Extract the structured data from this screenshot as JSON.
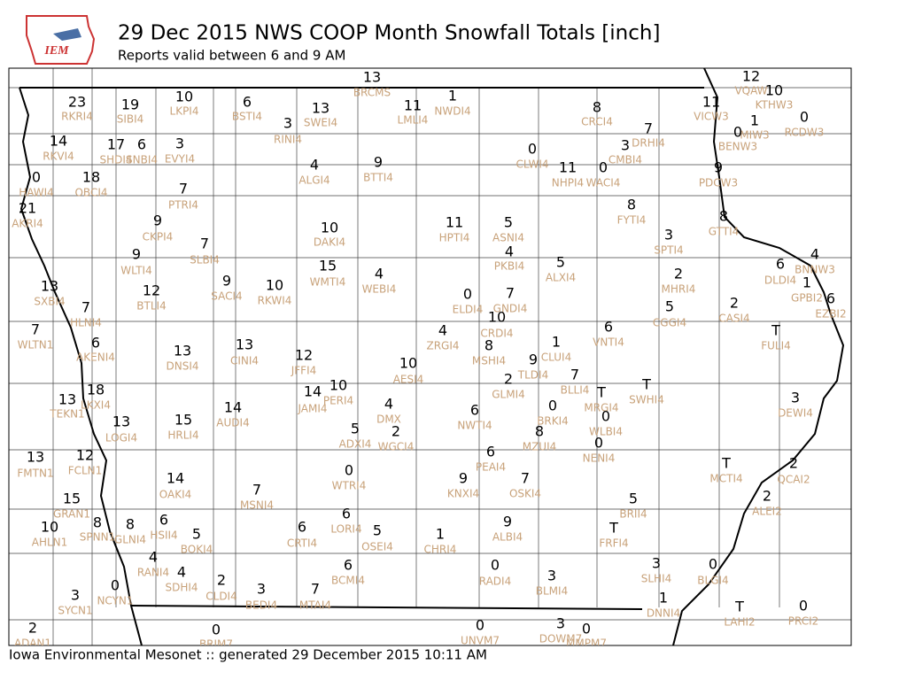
{
  "header": {
    "logo_text": "IEM",
    "title": "29 Dec 2015 NWS COOP Month Snowfall Totals [inch]",
    "subtitle": "Reports valid between 6 and 9 AM"
  },
  "footer": "Iowa Environmental Mesonet :: generated 29 December 2015 10:11 AM",
  "stations": [
    {
      "id": "RKRI4",
      "value": 23
    },
    {
      "id": "SIBI4",
      "value": 19
    },
    {
      "id": "LKPI4",
      "value": 10
    },
    {
      "id": "BSTI4",
      "value": 6
    },
    {
      "id": "BRCMS",
      "value": 13
    },
    {
      "id": "LMLI4",
      "value": 11
    },
    {
      "id": "NWDI4",
      "value": 1
    },
    {
      "id": "RINI4",
      "value": 3
    },
    {
      "id": "SWEI4",
      "value": 13
    },
    {
      "id": "CRCI4",
      "value": 8
    },
    {
      "id": "DRHI4",
      "value": 7
    },
    {
      "id": "CMBI4",
      "value": 3
    },
    {
      "id": "VICW3",
      "value": 11
    },
    {
      "id": "VQAW",
      "value": 12
    },
    {
      "id": "KTHW3",
      "value": 10
    },
    {
      "id": "MIW3",
      "value": 1
    },
    {
      "id": "BENW3",
      "value": 0
    },
    {
      "id": "RCDW3",
      "value": 0
    },
    {
      "id": "RKVI4",
      "value": 14
    },
    {
      "id": "SHDI4",
      "value": 17
    },
    {
      "id": "SNBI4",
      "value": 6
    },
    {
      "id": "EVYI4",
      "value": 3
    },
    {
      "id": "ALGI4",
      "value": 4
    },
    {
      "id": "BTTI4",
      "value": 9
    },
    {
      "id": "CLWI4",
      "value": 0
    },
    {
      "id": "NHPI4",
      "value": 11
    },
    {
      "id": "WACI4",
      "value": 0
    },
    {
      "id": "PDCW3",
      "value": 9
    },
    {
      "id": "HAWI4",
      "value": 0
    },
    {
      "id": "OBCI4",
      "value": 18
    },
    {
      "id": "PTRI4",
      "value": 7
    },
    {
      "id": "AKRI4",
      "value": 21
    },
    {
      "id": "CKPI4",
      "value": 9
    },
    {
      "id": "DAKI4",
      "value": 10
    },
    {
      "id": "HPTI4",
      "value": 11
    },
    {
      "id": "ASNI4",
      "value": 5
    },
    {
      "id": "FYTI4",
      "value": 8
    },
    {
      "id": "GTTI4",
      "value": 8
    },
    {
      "id": "SLBI4",
      "value": 7
    },
    {
      "id": "SPTI4",
      "value": 3
    },
    {
      "id": "WLTI4",
      "value": 9
    },
    {
      "id": "WMTI4",
      "value": 15
    },
    {
      "id": "WEBI4",
      "value": 4
    },
    {
      "id": "PKBI4",
      "value": 4
    },
    {
      "id": "ALXI4",
      "value": 5
    },
    {
      "id": "MHRI4",
      "value": 2
    },
    {
      "id": "DLDI4",
      "value": 6
    },
    {
      "id": "BNNW3",
      "value": 4
    },
    {
      "id": "GPBI2",
      "value": 1
    },
    {
      "id": "EZBI2",
      "value": 6
    },
    {
      "id": "SXBI4",
      "value": 13
    },
    {
      "id": "HLNI4",
      "value": 7
    },
    {
      "id": "BTLI4",
      "value": 12
    },
    {
      "id": "SACI4",
      "value": 9
    },
    {
      "id": "RKWI4",
      "value": 10
    },
    {
      "id": "ELDI4",
      "value": 0
    },
    {
      "id": "GNDI4",
      "value": 7
    },
    {
      "id": "CRDI4",
      "value": 10
    },
    {
      "id": "CGGI4",
      "value": 5
    },
    {
      "id": "CASI4",
      "value": 2
    },
    {
      "id": "WLTN1",
      "value": 7
    },
    {
      "id": "AKENI4",
      "value": 6
    },
    {
      "id": "DNSI4",
      "value": 13
    },
    {
      "id": "CINI4",
      "value": 13
    },
    {
      "id": "JFFI4",
      "value": 12
    },
    {
      "id": "ZRGI4",
      "value": 4
    },
    {
      "id": "MSHI4",
      "value": 8
    },
    {
      "id": "TLDI4",
      "value": 9
    },
    {
      "id": "CLUI4",
      "value": 1
    },
    {
      "id": "VNTI4",
      "value": 6
    },
    {
      "id": "FULI4",
      "value": "T"
    },
    {
      "id": "AESI4",
      "value": 10
    },
    {
      "id": "GLMI4",
      "value": 2
    },
    {
      "id": "BLLI4",
      "value": 7
    },
    {
      "id": "MRGI4",
      "value": "T"
    },
    {
      "id": "SWHI4",
      "value": "T"
    },
    {
      "id": "DEWI4",
      "value": 3
    },
    {
      "id": "TEKN1",
      "value": 13
    },
    {
      "id": "LKXI4",
      "value": 18
    },
    {
      "id": "JAMI4",
      "value": 14
    },
    {
      "id": "PERI4",
      "value": 10
    },
    {
      "id": "DMX",
      "value": 4
    },
    {
      "id": "BRKI4",
      "value": 0
    },
    {
      "id": "WLBI4",
      "value": 0
    },
    {
      "id": "NWTI4",
      "value": 6
    },
    {
      "id": "LOGI4",
      "value": 13
    },
    {
      "id": "HRLI4",
      "value": 15
    },
    {
      "id": "AUDI4",
      "value": 14
    },
    {
      "id": "ADXI4",
      "value": 5
    },
    {
      "id": "WGCI4",
      "value": 2
    },
    {
      "id": "MZUI4",
      "value": 8
    },
    {
      "id": "NENI4",
      "value": 0
    },
    {
      "id": "FMTN1",
      "value": 13
    },
    {
      "id": "FCLN1",
      "value": 12
    },
    {
      "id": "PEAI4",
      "value": 6
    },
    {
      "id": "MCTI4",
      "value": "T"
    },
    {
      "id": "QCAI2",
      "value": 2
    },
    {
      "id": "OAKI4",
      "value": 14
    },
    {
      "id": "WTRI4",
      "value": 0
    },
    {
      "id": "KNXI4",
      "value": 9
    },
    {
      "id": "OSKI4",
      "value": 7
    },
    {
      "id": "MSNI4",
      "value": 7
    },
    {
      "id": "ALEI2",
      "value": 2
    },
    {
      "id": "GRAN1",
      "value": 15
    },
    {
      "id": "BRII4",
      "value": 5
    },
    {
      "id": "SPNN1",
      "value": 8
    },
    {
      "id": "GLNI4",
      "value": 8
    },
    {
      "id": "HSII4",
      "value": 6
    },
    {
      "id": "BOKI4",
      "value": 5
    },
    {
      "id": "CRTI4",
      "value": 6
    },
    {
      "id": "LORI4",
      "value": 6
    },
    {
      "id": "OSEI4",
      "value": 5
    },
    {
      "id": "CHRI4",
      "value": 1
    },
    {
      "id": "ALBI4",
      "value": 9
    },
    {
      "id": "FRFI4",
      "value": "T"
    },
    {
      "id": "AHLN1",
      "value": 10
    },
    {
      "id": "RANI4",
      "value": 4
    },
    {
      "id": "SDHI4",
      "value": 4
    },
    {
      "id": "CLDI4",
      "value": 2
    },
    {
      "id": "BEDI4",
      "value": 3
    },
    {
      "id": "MTAI4",
      "value": 7
    },
    {
      "id": "BCMI4",
      "value": 6
    },
    {
      "id": "RADI4",
      "value": 0
    },
    {
      "id": "BLMI4",
      "value": 3
    },
    {
      "id": "SLHI4",
      "value": 3
    },
    {
      "id": "BLGI4",
      "value": 0
    },
    {
      "id": "SYCN1",
      "value": 3
    },
    {
      "id": "NCYN1",
      "value": 0
    },
    {
      "id": "DNNI4",
      "value": 1
    },
    {
      "id": "LAHI2",
      "value": "T"
    },
    {
      "id": "PRCI2",
      "value": 0
    },
    {
      "id": "ADAN1",
      "value": 2
    },
    {
      "id": "BRIM7",
      "value": 0
    },
    {
      "id": "UNVM7",
      "value": 0
    },
    {
      "id": "DOWM7",
      "value": 3
    },
    {
      "id": "MMPM7",
      "value": 0
    }
  ]
}
